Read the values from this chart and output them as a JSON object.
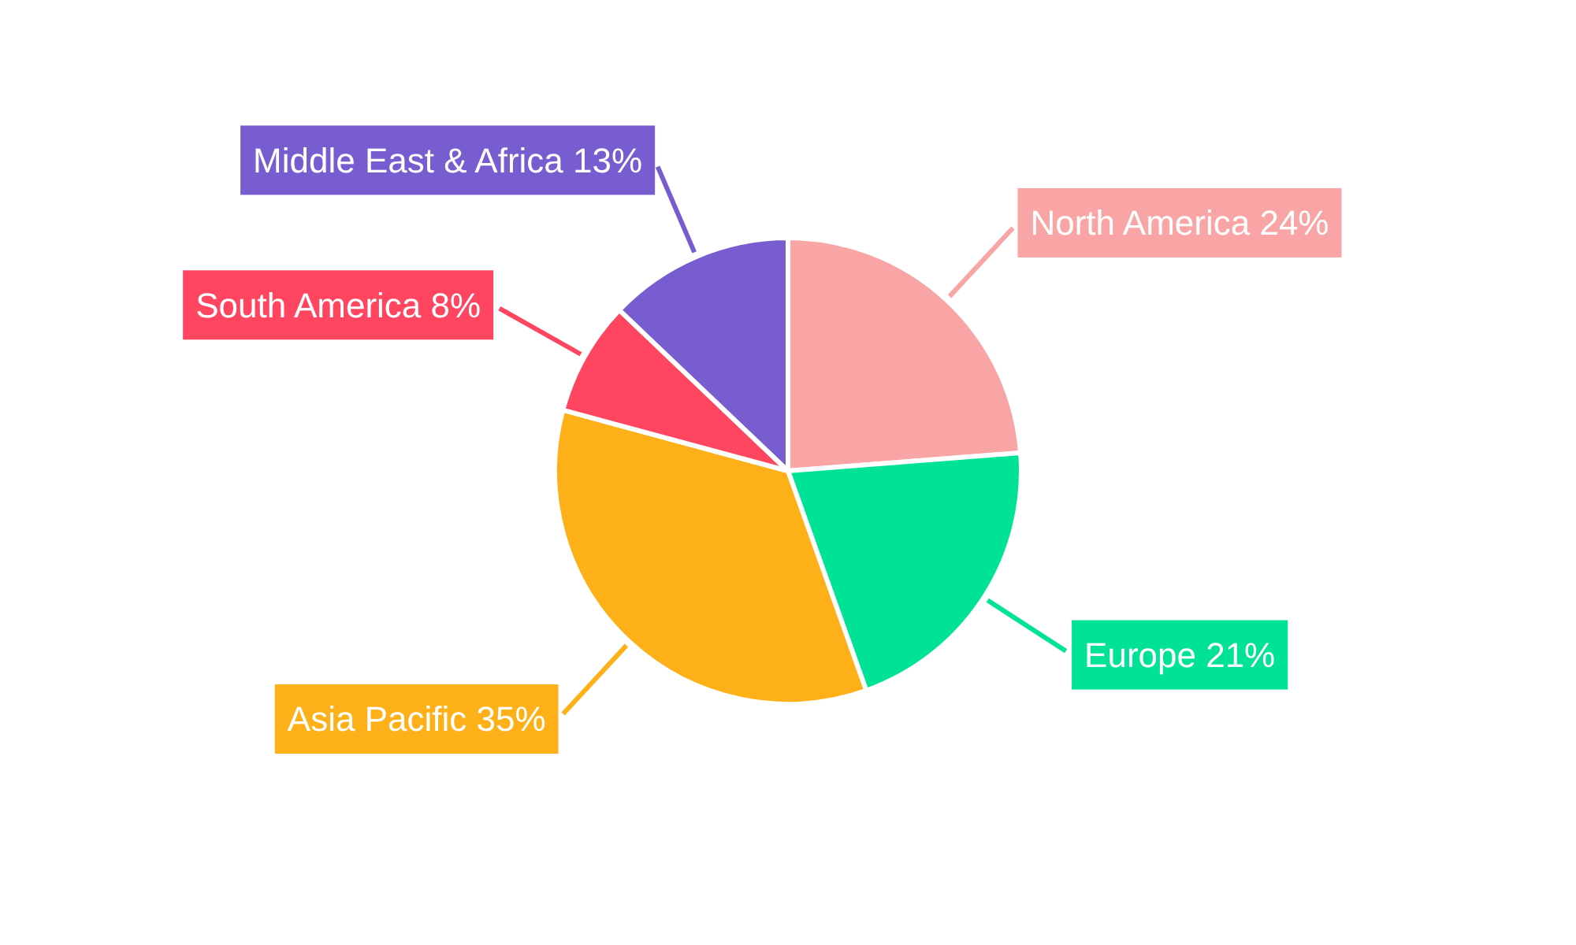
{
  "chart_data": {
    "type": "pie",
    "categories": [
      "North America",
      "Europe",
      "Asia Pacific",
      "South America",
      "Middle East & Africa"
    ],
    "values": [
      24,
      21,
      35,
      8,
      13
    ],
    "colors": [
      "#f9a5a6",
      "#00e396",
      "#feb019",
      "#ff4560",
      "#775dd0"
    ],
    "value_labels": [
      "24%",
      "21%",
      "35%",
      "8%",
      "13%"
    ]
  }
}
